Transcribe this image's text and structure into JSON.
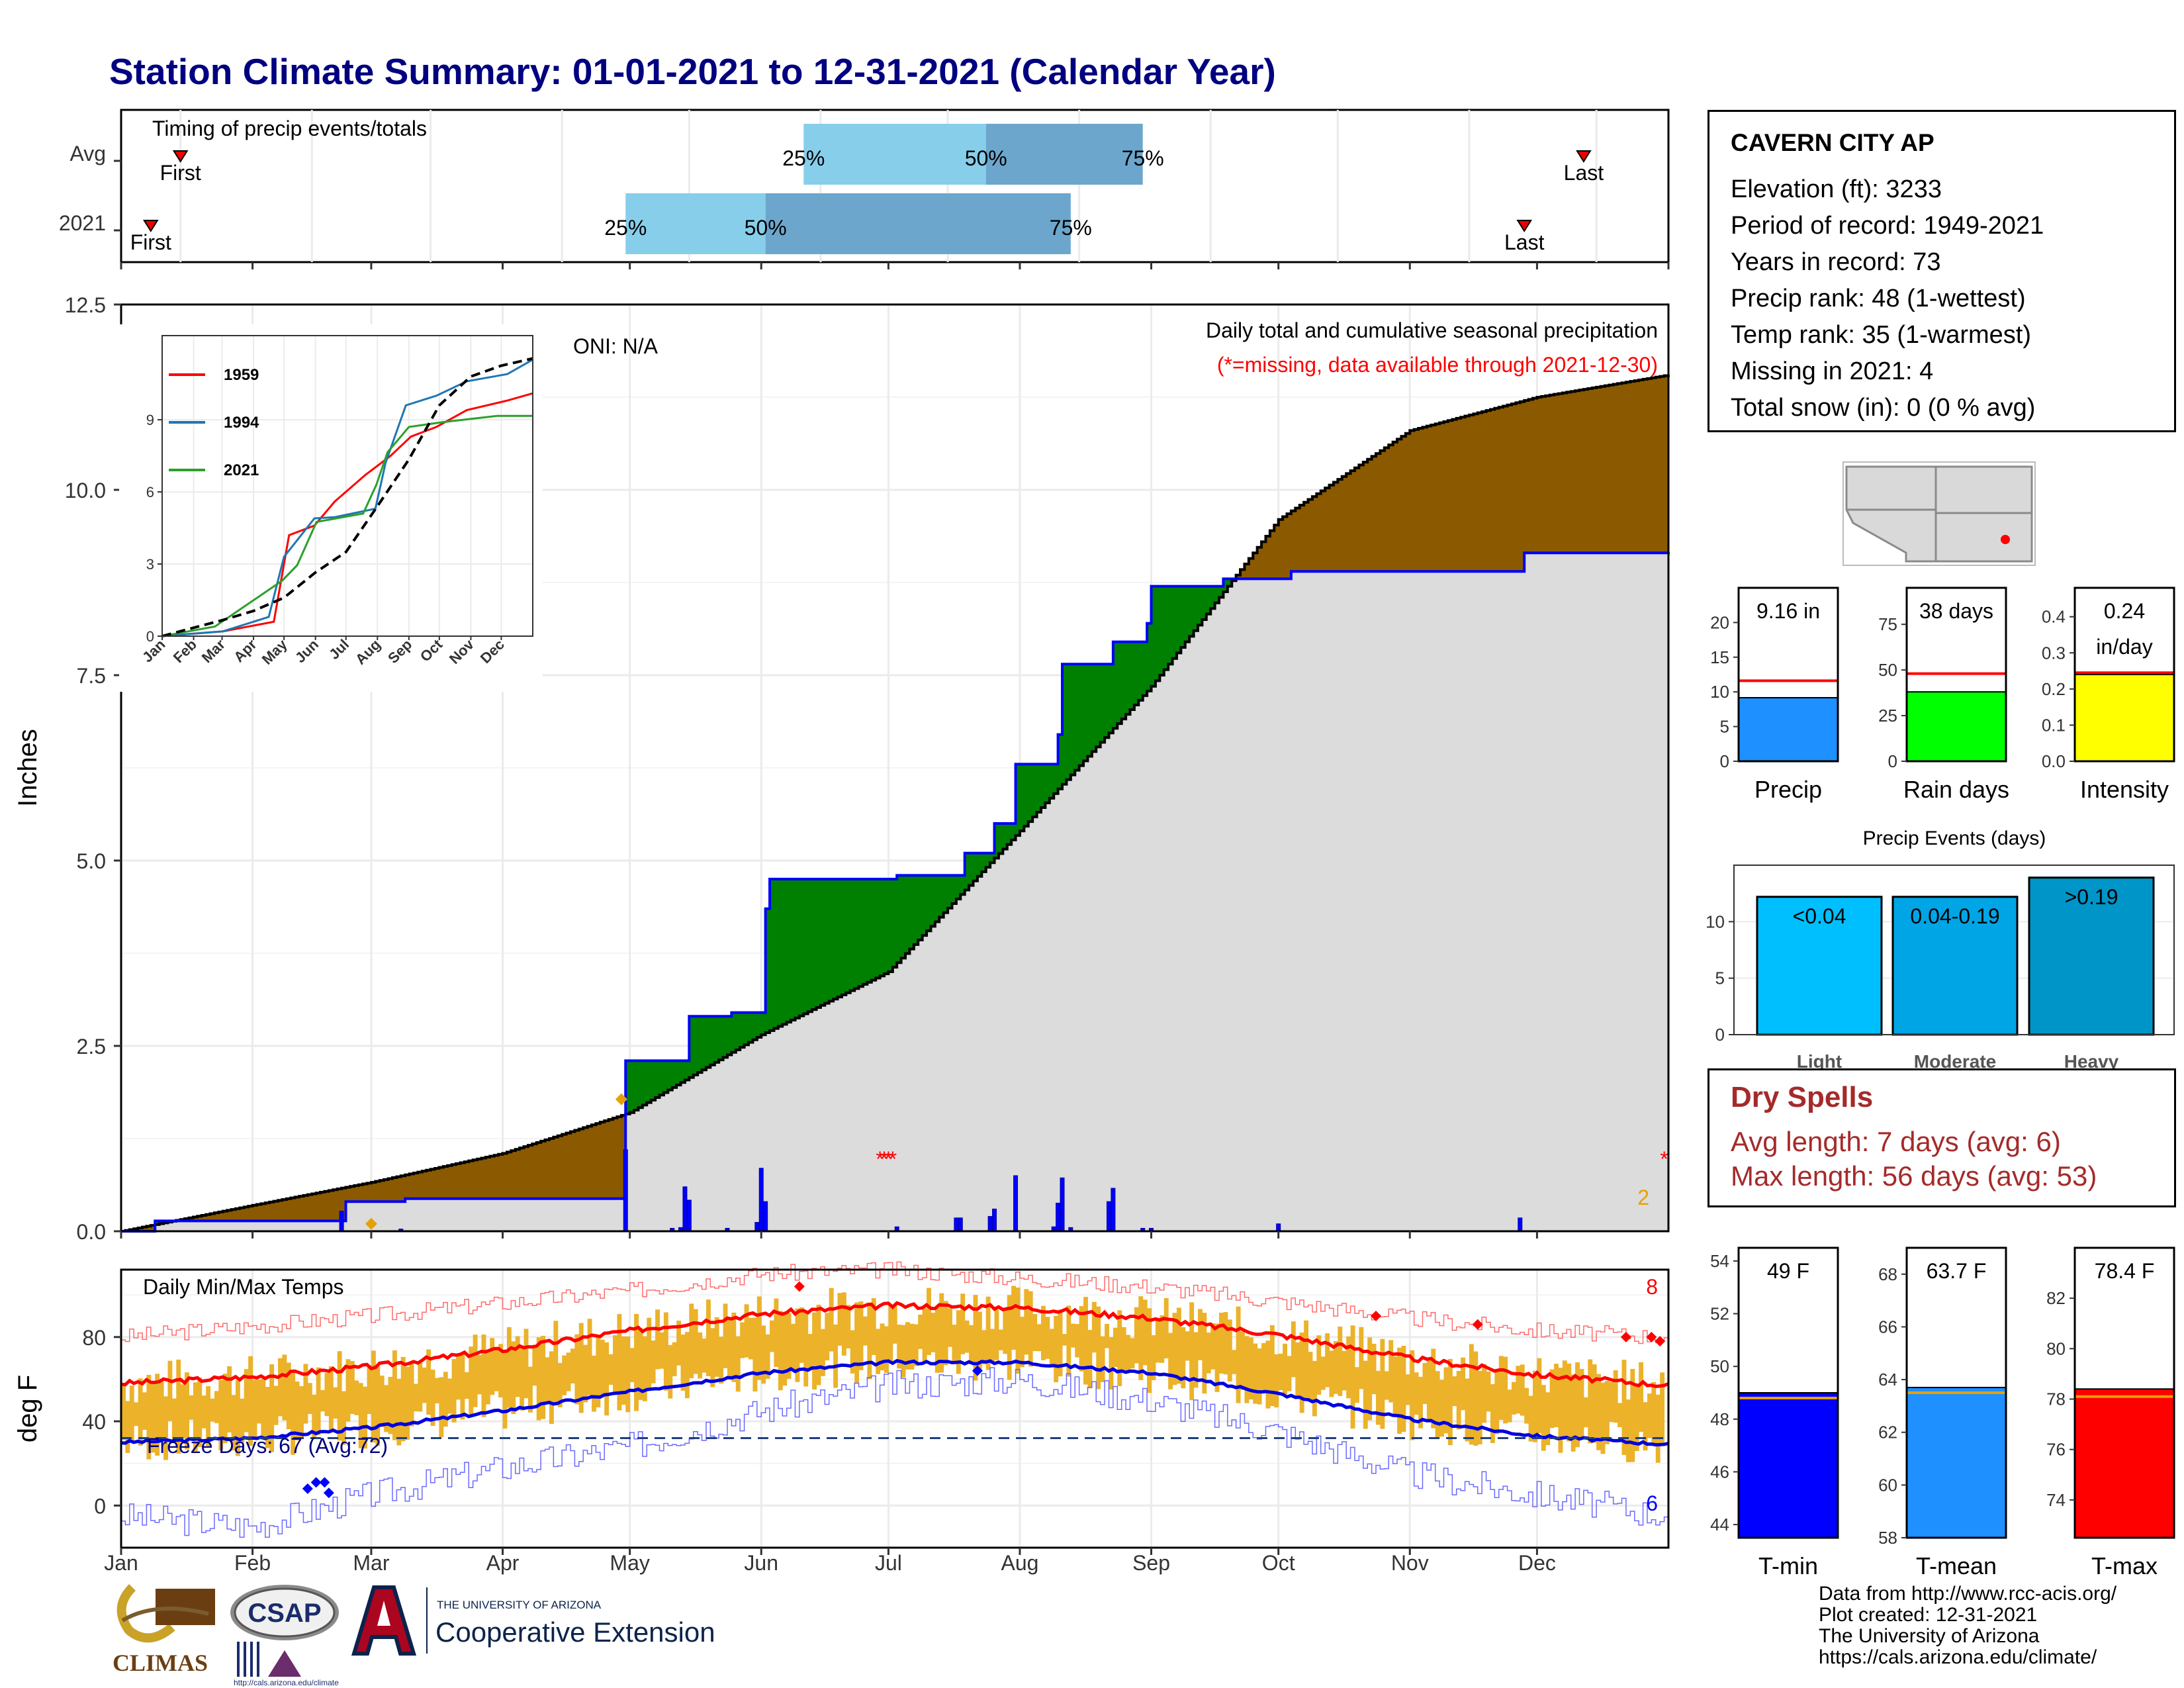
{
  "title": "Station Climate Summary: 01-01-2021 to 12-31-2021 (Calendar Year)",
  "colors": {
    "title": "#000080",
    "brown": "#8B5A00",
    "green": "#008000",
    "gray": "#DCDCDC",
    "blue": "#0000FF",
    "red": "#FF0000",
    "orange": "#E6A100",
    "light_blue": "#87CEEB",
    "mid_blue": "#6CA6CD",
    "navy": "#000080"
  },
  "station": {
    "name": "CAVERN CITY AP",
    "rows": [
      "Elevation (ft): 3233",
      "Period of record: 1949-2021",
      "Years in record: 73",
      "Precip rank: 48 (1-wettest)",
      "Temp rank: 35 (1-warmest)",
      "Missing in 2021: 4",
      "Total snow (in): 0 (0 % avg)"
    ]
  },
  "timing": {
    "title": "Timing of precip events/totals",
    "rows": [
      {
        "label": "Avg",
        "first": "01-15",
        "last": "12-12",
        "q25": "06-11",
        "q50": "07-24",
        "q75": "08-30"
      },
      {
        "label": "2021",
        "first": "01-08",
        "last": "11-28",
        "q25": "04-30",
        "q50": "06-02",
        "q75": "08-13"
      }
    ],
    "labels": {
      "first": "First",
      "last": "Last",
      "p25": "25%",
      "p50": "50%",
      "p75": "75%"
    }
  },
  "main_chart": {
    "ylabel": "Inches",
    "yticks": [
      "0.0",
      "2.5",
      "5.0",
      "7.5",
      "10.0",
      "12.5"
    ],
    "months": [
      "Jan",
      "Feb",
      "Mar",
      "Apr",
      "May",
      "Jun",
      "Jul",
      "Aug",
      "Sep",
      "Oct",
      "Nov",
      "Dec"
    ],
    "oni": "ONI: N/A",
    "caption1": "Daily total and cumulative seasonal precipitation",
    "caption2": "(*=missing, data available through 2021-12-30)",
    "missing_count": "2"
  },
  "chart_data": [
    {
      "type": "area",
      "name": "cumulative_precip",
      "ylim": [
        0,
        12.5
      ],
      "avg_cumulative": [
        [
          0,
          0
        ],
        [
          31,
          0.35
        ],
        [
          59,
          0.66
        ],
        [
          90,
          1.05
        ],
        [
          120,
          1.6
        ],
        [
          151,
          2.65
        ],
        [
          181,
          3.5
        ],
        [
          212,
          5.4
        ],
        [
          243,
          7.35
        ],
        [
          273,
          9.6
        ],
        [
          304,
          10.8
        ],
        [
          334,
          11.25
        ],
        [
          365,
          11.55
        ]
      ],
      "obs_cumulative": [
        [
          0,
          0
        ],
        [
          8,
          0.14
        ],
        [
          52,
          0.14
        ],
        [
          53,
          0.4
        ],
        [
          66,
          0.4
        ],
        [
          67,
          0.44
        ],
        [
          118,
          0.44
        ],
        [
          119,
          2.3
        ],
        [
          133,
          2.3
        ],
        [
          134,
          2.9
        ],
        [
          143,
          2.9
        ],
        [
          144,
          2.95
        ],
        [
          151,
          2.95
        ],
        [
          152,
          4.35
        ],
        [
          153,
          4.75
        ],
        [
          182,
          4.75
        ],
        [
          183,
          4.8
        ],
        [
          198,
          4.8
        ],
        [
          199,
          5.1
        ],
        [
          205,
          5.1
        ],
        [
          206,
          5.5
        ],
        [
          210,
          5.5
        ],
        [
          211,
          6.3
        ],
        [
          220,
          6.3
        ],
        [
          221,
          6.7
        ],
        [
          222,
          7.65
        ],
        [
          233,
          7.65
        ],
        [
          234,
          7.95
        ],
        [
          241,
          7.95
        ],
        [
          242,
          8.2
        ],
        [
          243,
          8.7
        ],
        [
          260,
          8.8
        ],
        [
          276,
          8.9
        ],
        [
          330,
          8.9
        ],
        [
          331,
          9.15
        ],
        [
          365,
          9.16
        ]
      ],
      "daily_bars": [
        [
          52,
          0.27
        ],
        [
          66,
          0.03
        ],
        [
          119,
          1.1
        ],
        [
          130,
          0.04
        ],
        [
          132,
          0.05
        ],
        [
          133,
          0.6
        ],
        [
          134,
          0.42
        ],
        [
          143,
          0.04
        ],
        [
          150,
          0.12
        ],
        [
          151,
          0.85
        ],
        [
          152,
          0.4
        ],
        [
          183,
          0.06
        ],
        [
          197,
          0.18
        ],
        [
          198,
          0.18
        ],
        [
          205,
          0.2
        ],
        [
          206,
          0.3
        ],
        [
          211,
          0.75
        ],
        [
          220,
          0.06
        ],
        [
          221,
          0.38
        ],
        [
          222,
          0.72
        ],
        [
          224,
          0.05
        ],
        [
          233,
          0.4
        ],
        [
          234,
          0.58
        ],
        [
          241,
          0.04
        ],
        [
          243,
          0.04
        ],
        [
          273,
          0.1
        ],
        [
          330,
          0.18
        ]
      ],
      "missing_days": [
        179,
        180,
        181,
        182,
        364
      ],
      "orange_points": [
        [
          59,
          0.1
        ],
        [
          118,
          1.78
        ]
      ]
    },
    {
      "type": "line",
      "name": "inset_cumulative_years",
      "ylim": [
        0,
        12.5
      ],
      "yticks": [
        0,
        3,
        6,
        9
      ],
      "months": [
        "Jan",
        "Feb",
        "Mar",
        "Apr",
        "May",
        "Jun",
        "Jul",
        "Aug",
        "Sep",
        "Oct",
        "Nov",
        "Dec"
      ],
      "series": [
        {
          "name": "1959",
          "color": "#FF0000",
          "values": [
            [
              0,
              0
            ],
            [
              60,
              0.2
            ],
            [
              110,
              0.6
            ],
            [
              125,
              4.2
            ],
            [
              150,
              4.6
            ],
            [
              170,
              5.6
            ],
            [
              200,
              6.7
            ],
            [
              225,
              7.5
            ],
            [
              245,
              8.3
            ],
            [
              270,
              8.7
            ],
            [
              300,
              9.4
            ],
            [
              340,
              9.8
            ],
            [
              365,
              10.1
            ]
          ]
        },
        {
          "name": "1994",
          "color": "#1F77B4",
          "values": [
            [
              0,
              0
            ],
            [
              60,
              0.2
            ],
            [
              105,
              0.8
            ],
            [
              120,
              3.3
            ],
            [
              150,
              4.9
            ],
            [
              170,
              4.95
            ],
            [
              210,
              5.3
            ],
            [
              220,
              7.2
            ],
            [
              240,
              9.6
            ],
            [
              270,
              10.0
            ],
            [
              300,
              10.6
            ],
            [
              340,
              10.9
            ],
            [
              365,
              11.5
            ]
          ]
        },
        {
          "name": "2021",
          "color": "#2CA02C",
          "values": [
            [
              0,
              0
            ],
            [
              52,
              0.4
            ],
            [
              118,
              2.3
            ],
            [
              133,
              2.95
            ],
            [
              152,
              4.75
            ],
            [
              198,
              5.1
            ],
            [
              211,
              6.3
            ],
            [
              222,
              7.65
            ],
            [
              243,
              8.7
            ],
            [
              276,
              8.9
            ],
            [
              330,
              9.16
            ],
            [
              365,
              9.16
            ]
          ]
        },
        {
          "name": "avg",
          "color": "#000000",
          "dashed": true,
          "values": [
            [
              0,
              0
            ],
            [
              31,
              0.35
            ],
            [
              59,
              0.66
            ],
            [
              90,
              1.05
            ],
            [
              120,
              1.6
            ],
            [
              151,
              2.65
            ],
            [
              181,
              3.5
            ],
            [
              212,
              5.4
            ],
            [
              243,
              7.35
            ],
            [
              273,
              9.6
            ],
            [
              304,
              10.8
            ],
            [
              334,
              11.25
            ],
            [
              365,
              11.55
            ]
          ]
        }
      ]
    },
    {
      "type": "line",
      "name": "daily_temps",
      "ylim": [
        -20,
        112
      ],
      "yticks": [
        0,
        40,
        80
      ],
      "normal_max": [
        [
          0,
          58
        ],
        [
          31,
          61
        ],
        [
          59,
          66
        ],
        [
          90,
          74
        ],
        [
          120,
          83
        ],
        [
          151,
          91
        ],
        [
          181,
          95
        ],
        [
          212,
          94
        ],
        [
          243,
          89
        ],
        [
          273,
          81
        ],
        [
          304,
          70
        ],
        [
          334,
          62
        ],
        [
          365,
          57
        ]
      ],
      "normal_min": [
        [
          0,
          30
        ],
        [
          31,
          32
        ],
        [
          59,
          37
        ],
        [
          90,
          45
        ],
        [
          120,
          54
        ],
        [
          151,
          63
        ],
        [
          181,
          68
        ],
        [
          212,
          68
        ],
        [
          243,
          63
        ],
        [
          273,
          53
        ],
        [
          304,
          41
        ],
        [
          334,
          33
        ],
        [
          365,
          29
        ]
      ],
      "record_max": [
        [
          0,
          80
        ],
        [
          59,
          90
        ],
        [
          120,
          102
        ],
        [
          151,
          110
        ],
        [
          181,
          112
        ],
        [
          212,
          108
        ],
        [
          243,
          104
        ],
        [
          273,
          97
        ],
        [
          304,
          89
        ],
        [
          334,
          83
        ],
        [
          365,
          80
        ]
      ],
      "record_min": [
        [
          0,
          -5
        ],
        [
          31,
          -10
        ],
        [
          59,
          5
        ],
        [
          90,
          18
        ],
        [
          120,
          28
        ],
        [
          151,
          45
        ],
        [
          181,
          57
        ],
        [
          212,
          60
        ],
        [
          243,
          50
        ],
        [
          273,
          35
        ],
        [
          304,
          15
        ],
        [
          334,
          5
        ],
        [
          365,
          -5
        ]
      ],
      "freeze_line": 32,
      "freeze_label": "Freeze Days: 67 (Avg:72)",
      "title": "Daily Min/Max Temps",
      "record_high_count": "8",
      "record_low_count": "6",
      "ylabel": "deg F"
    },
    {
      "type": "bar",
      "name": "summary_bars",
      "panels": [
        {
          "label": "Precip",
          "value": 9.16,
          "avg": 11.6,
          "ylim": [
            0,
            25
          ],
          "yticks": [
            0,
            5,
            10,
            15,
            20
          ],
          "color": "#1E90FF",
          "text": "9.16 in"
        },
        {
          "label": "Rain days",
          "value": 38,
          "avg": 48,
          "ylim": [
            0,
            95
          ],
          "yticks": [
            0,
            25,
            50,
            75
          ],
          "color": "#00FF00",
          "text": "38 days"
        },
        {
          "label": "Intensity",
          "value": 0.24,
          "avg": 0.245,
          "ylim": [
            0,
            0.48
          ],
          "yticks": [
            "0.0",
            "0.1",
            "0.2",
            "0.3",
            "0.4"
          ],
          "color": "#FFFF00",
          "text": "0.24",
          "text2": "in/day"
        }
      ]
    },
    {
      "type": "bar",
      "name": "precip_events",
      "title": "Precip Events (days)",
      "categories": [
        "Light",
        "Moderate",
        "Heavy"
      ],
      "values": [
        12.2,
        12.2,
        13.9
      ],
      "labels": [
        "<0.04",
        "0.04-0.19",
        ">0.19"
      ],
      "ylim": [
        0,
        15
      ],
      "yticks": [
        0,
        5,
        10
      ]
    },
    {
      "type": "bar",
      "name": "temp_summary",
      "panels": [
        {
          "label": "T-min",
          "value": 49.0,
          "avg": 48.8,
          "ylim": [
            43.5,
            54.5
          ],
          "yticks": [
            44,
            46,
            48,
            50,
            52,
            54
          ],
          "color": "#0000FF",
          "text": "49 F"
        },
        {
          "label": "T-mean",
          "value": 63.7,
          "avg": 63.5,
          "ylim": [
            58,
            69
          ],
          "yticks": [
            58,
            60,
            62,
            64,
            66,
            68
          ],
          "color": "#1E90FF",
          "text": "63.7 F"
        },
        {
          "label": "T-max",
          "value": 78.4,
          "avg": 78.1,
          "ylim": [
            72.5,
            84
          ],
          "yticks": [
            74,
            76,
            78,
            80,
            82
          ],
          "color": "#FF0000",
          "text": "78.4 F"
        }
      ]
    }
  ],
  "dry_spells": {
    "title": "Dry Spells",
    "avg_length": "Avg length: 7 days (avg: 6)",
    "max_length": "Max length: 56 days (avg: 53)"
  },
  "footer": [
    "Data from http://www.rcc-acis.org/",
    "Plot created: 12-31-2021",
    "The University of Arizona",
    "https://cals.arizona.edu/climate/"
  ],
  "logos": {
    "climas": "CLIMAS",
    "csap": "CSAP",
    "csap_url": "http://cals.arizona.edu/climate",
    "ua_small": "THE UNIVERSITY OF ARIZONA",
    "coop": "Cooperative Extension"
  }
}
